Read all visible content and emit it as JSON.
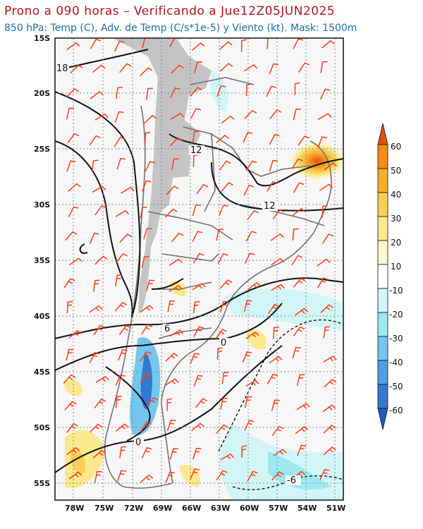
{
  "header": {
    "title": "Prono a 090 horas – Verificando a Jue12Z05JUN2025",
    "subtitle": "850 hPa: Temp (C), Adv. de Temp (C/s*1e-5) y Viento (kt). Mask: 1500m"
  },
  "axes": {
    "lat_labels": [
      "15S",
      "20S",
      "25S",
      "30S",
      "35S",
      "40S",
      "45S",
      "50S",
      "55S"
    ],
    "lon_labels": [
      "78W",
      "75W",
      "72W",
      "69W",
      "66W",
      "63W",
      "60W",
      "57W",
      "54W",
      "51W"
    ]
  },
  "contour_labels": [
    "18",
    "12",
    "12",
    "6",
    "0",
    "0",
    "-6"
  ],
  "colorbar": {
    "labels": [
      "60",
      "50",
      "40",
      "30",
      "20",
      "10",
      "-10",
      "-20",
      "-30",
      "-40",
      "-50",
      "-60"
    ],
    "colors": [
      "#e84f12",
      "#f58a14",
      "#f9ae2a",
      "#fbcf55",
      "#fde98d",
      "#fff8c8",
      "#ffffff",
      "#d2f6f7",
      "#9beaf0",
      "#74c6ee",
      "#4fa0e4",
      "#3178d0",
      "#1f5cc0"
    ]
  },
  "colors": {
    "contour": "#111111",
    "wind_barb": "#ff3d14",
    "terrain_mask": "#c4c4c4",
    "borders": "#707070",
    "grid": "#888888"
  }
}
